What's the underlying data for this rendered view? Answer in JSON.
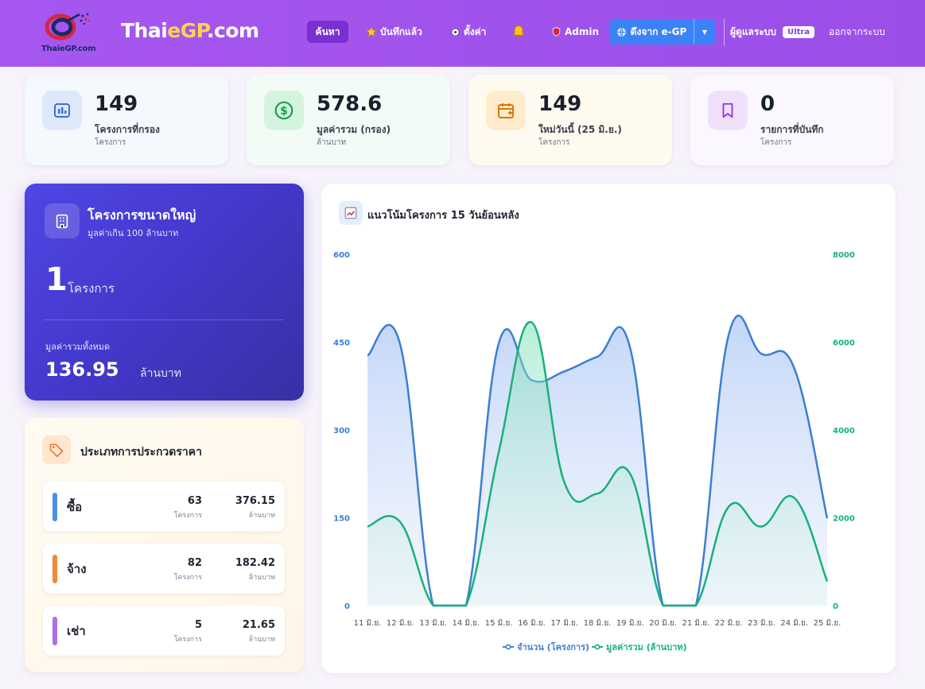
{
  "header": {
    "logo_text": "ThaieGP.com",
    "brand_main": "Thai",
    "brand_accent": "eGP",
    "brand_tail": ".com",
    "nav": {
      "search": "ค้นหา",
      "saved": "บันทึกแล้ว",
      "settings": "ตั้งค่า",
      "admin": "Admin"
    },
    "pull_button": "ดึงจาก e-GP",
    "admin_label": "ผู้ดูแลระบบ",
    "plan_badge": "Ultra",
    "logout": "ออกจากระบบ"
  },
  "stats": [
    {
      "value": "149",
      "label": "โครงการที่กรอง",
      "sub": "โครงการ",
      "icon": "chart-icon",
      "color": "#3b6fd6"
    },
    {
      "value": "578.6",
      "label": "มูลค่ารวม (กรอง)",
      "sub": "ล้านบาท",
      "icon": "dollar-icon",
      "color": "#16a34a"
    },
    {
      "value": "149",
      "label": "ใหม่วันนี้ (25 มิ.ย.)",
      "sub": "โครงการ",
      "icon": "calendar-plus-icon",
      "color": "#d97706"
    },
    {
      "value": "0",
      "label": "รายการที่บันทึก",
      "sub": "โครงการ",
      "icon": "bookmark-icon",
      "color": "#9333ea"
    }
  ],
  "large_projects": {
    "title": "โครงการขนาดใหญ่",
    "subtitle": "มูลค่าเกิน 100 ล้านบาท",
    "count": "1",
    "count_unit": "โครงการ",
    "total_label": "มูลค่ารวมทั้งหมด",
    "total_value": "136.95",
    "total_unit": "ล้านบาท"
  },
  "types": {
    "title": "ประเภทการประกวดราคา",
    "rows": [
      {
        "name": "ซื้อ",
        "count": "63",
        "count_unit": "โครงการ",
        "value": "376.15",
        "value_unit": "ล้านบาท",
        "color": "#4a90e2"
      },
      {
        "name": "จ้าง",
        "count": "82",
        "count_unit": "โครงการ",
        "value": "182.42",
        "value_unit": "ล้านบาท",
        "color": "#f0893a"
      },
      {
        "name": "เช่า",
        "count": "5",
        "count_unit": "โครงการ",
        "value": "21.65",
        "value_unit": "ล้านบาท",
        "color": "#b16fe6"
      }
    ]
  },
  "chart": {
    "title": "แนวโน้มโครงการ 15 วันย้อนหลัง"
  },
  "chart_data": {
    "type": "line",
    "x": [
      "11 มิ.ย.",
      "12 มิ.ย.",
      "13 มิ.ย.",
      "14 มิ.ย.",
      "15 มิ.ย.",
      "16 มิ.ย.",
      "17 มิ.ย.",
      "18 มิ.ย.",
      "19 มิ.ย.",
      "20 มิ.ย.",
      "21 มิ.ย.",
      "22 มิ.ย.",
      "23 มิ.ย.",
      "24 มิ.ย.",
      "25 มิ.ย."
    ],
    "series": [
      {
        "name": "จำนวน (โครงการ)",
        "axis": "left",
        "color": "#3b7fd4",
        "fill": true,
        "values": [
          427,
          445,
          0,
          0,
          448,
          385,
          400,
          425,
          440,
          0,
          0,
          462,
          430,
          405,
          149
        ]
      },
      {
        "name": "มูลค่ารวม (ล้านบาท)",
        "axis": "right",
        "color": "#19b07a",
        "fill": true,
        "values": [
          1800,
          1900,
          0,
          0,
          3500,
          6450,
          2800,
          2550,
          3000,
          0,
          0,
          2250,
          1800,
          2450,
          550
        ]
      }
    ],
    "y_left": {
      "min": 0,
      "max": 600,
      "ticks": [
        0,
        150,
        300,
        450,
        600
      ]
    },
    "y_right": {
      "min": 0,
      "max": 8000,
      "ticks": [
        0,
        2000,
        4000,
        6000,
        8000
      ]
    },
    "legend": "bottom",
    "grid": false
  }
}
